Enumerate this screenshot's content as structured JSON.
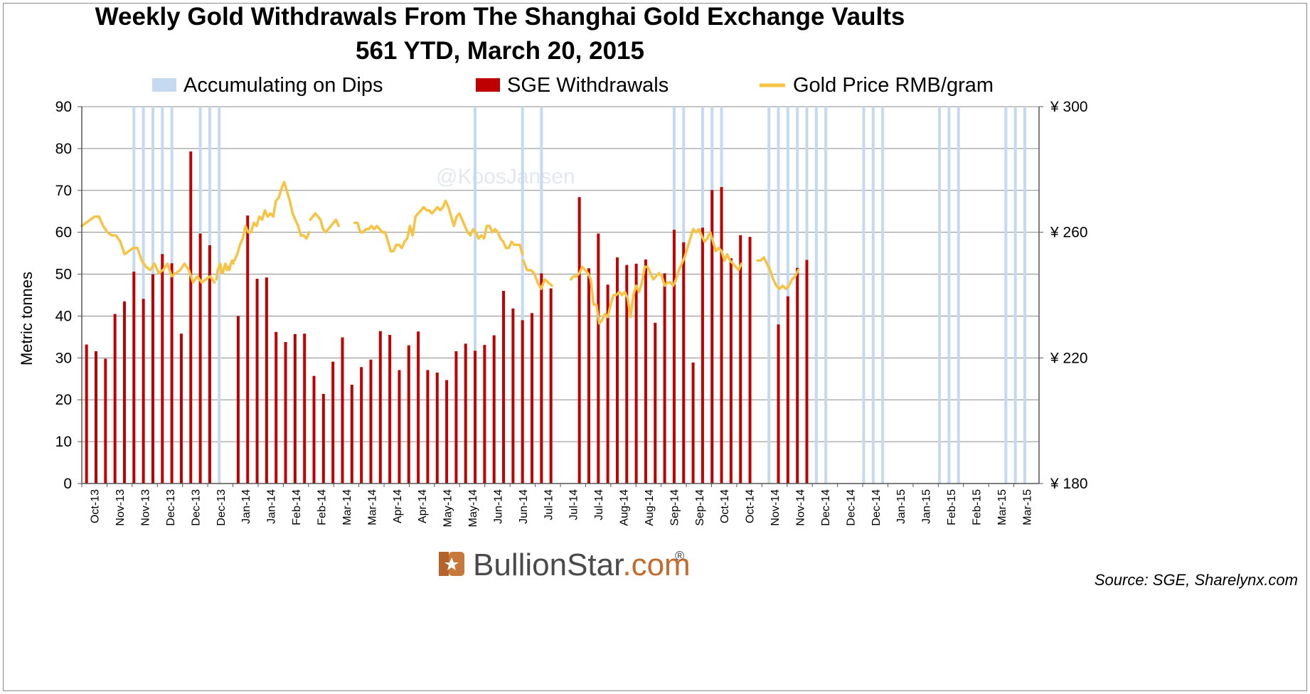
{
  "chart_data": {
    "type": "bar",
    "title": "Weekly Gold Withdrawals From The Shanghai Gold Exchange Vaults",
    "subtitle": "561 YTD, March 20, 2015",
    "ylabel": "Metric tonnes",
    "ylim": [
      0,
      90
    ],
    "yticks": [
      0,
      10,
      20,
      30,
      40,
      50,
      60,
      70,
      80,
      90
    ],
    "y2lim": [
      180,
      300
    ],
    "y2ticks": [
      "¥ 180",
      "¥ 220",
      "¥ 260",
      "¥ 300"
    ],
    "y2tick_values": [
      180,
      220,
      260,
      300
    ],
    "grid": true,
    "legend_position": "top",
    "x_ticks": [
      "Oct-13",
      "Nov-13",
      "Nov-13",
      "Dec-13",
      "Dec-13",
      "Dec-13",
      "Jan-14",
      "Jan-14",
      "Feb-14",
      "Feb-14",
      "Mar-14",
      "Mar-14",
      "Apr-14",
      "Apr-14",
      "May-14",
      "May-14",
      "Jun-14",
      "Jun-14",
      "Jul-14",
      "Jul-14",
      "Jul-14",
      "Aug-14",
      "Aug-14",
      "Sep-14",
      "Sep-14",
      "Oct-14",
      "Oct-14",
      "Nov-14",
      "Nov-14",
      "Dec-14",
      "Dec-14",
      "Dec-14",
      "Jan-15",
      "Jan-15",
      "Feb-15",
      "Feb-15",
      "Mar-15",
      "Mar-15"
    ],
    "series": [
      {
        "name": "Accumulating on Dips",
        "color": "#c5d9f1",
        "type": "bar",
        "values": [
          0,
          0,
          0,
          0,
          0,
          90,
          90,
          90,
          90,
          90,
          0,
          0,
          90,
          90,
          90,
          0,
          0,
          0,
          0,
          0,
          0,
          0,
          0,
          0,
          0,
          0,
          0,
          0,
          0,
          0,
          0,
          0,
          0,
          0,
          0,
          0,
          0,
          0,
          0,
          0,
          0,
          90,
          0,
          0,
          0,
          0,
          90,
          0,
          90,
          0,
          0,
          0,
          0,
          0,
          0,
          0,
          0,
          0,
          0,
          0,
          0,
          0,
          90,
          90,
          0,
          90,
          90,
          90,
          0,
          0,
          0,
          0,
          90,
          90,
          90,
          90,
          90,
          90,
          90,
          0,
          0,
          0,
          90,
          90,
          90,
          0,
          0,
          0,
          0,
          0,
          90,
          90,
          90,
          0,
          0,
          0,
          0,
          90,
          90,
          90,
          0
        ]
      },
      {
        "name": "SGE Withdrawals",
        "color": "#c00000",
        "type": "bar",
        "values": [
          33.2,
          31.6,
          29.8,
          40.5,
          43.5,
          50.6,
          44.1,
          50.0,
          54.8,
          52.6,
          35.8,
          79.3,
          59.7,
          56.9,
          0,
          0,
          40.0,
          64.0,
          48.9,
          49.2,
          36.2,
          33.8,
          35.7,
          35.8,
          25.7,
          21.4,
          29.1,
          34.9,
          23.6,
          27.8,
          29.6,
          36.4,
          35.5,
          27.1,
          33.0,
          36.3,
          27.1,
          26.5,
          24.7,
          31.6,
          33.4,
          31.7,
          33.1,
          35.4,
          46.0,
          41.8,
          39.0,
          40.7,
          50.2,
          46.6,
          0,
          0,
          68.4,
          51.4,
          59.7,
          47.5,
          54.0,
          52.2,
          52.5,
          53.5,
          38.4,
          50.2,
          60.6,
          57.6,
          28.9,
          61.1,
          70.1,
          70.8,
          53.8,
          59.3,
          58.9,
          0,
          0,
          38.0,
          44.7,
          51.5,
          53.4
        ]
      },
      {
        "name": "Gold Price RMB/gram",
        "color": "#f6c342",
        "type": "line",
        "axis": "secondary",
        "segments": [
          [
            262,
            263,
            264,
            265,
            265,
            262,
            260,
            259,
            259,
            257,
            253,
            254,
            255,
            255,
            251,
            249,
            248,
            250,
            247,
            248,
            250,
            246,
            247,
            248,
            250,
            248,
            244,
            246,
            244,
            245,
            246,
            244
          ],
          [
            245,
            248,
            249,
            250,
            247,
            247,
            249,
            250,
            248,
            249,
            248,
            250,
            251,
            250
          ],
          [
            251,
            253,
            256,
            258,
            262,
            260,
            260,
            263,
            262,
            265,
            264,
            267,
            265,
            266,
            265,
            270,
            271,
            274,
            276,
            273,
            270,
            266,
            264,
            262,
            259,
            259,
            258,
            260
          ],
          [
            264,
            265,
            266,
            265,
            264,
            261,
            260,
            261,
            262,
            263,
            264,
            262
          ],
          [
            263,
            263,
            260,
            260,
            261,
            261,
            262,
            261,
            262,
            261,
            260,
            260,
            257,
            254
          ],
          [
            254,
            254,
            256,
            256,
            255,
            257,
            258,
            262,
            259,
            265,
            266,
            267,
            268,
            267,
            267,
            266,
            267,
            268,
            267,
            268,
            270,
            268,
            265,
            262,
            265,
            266,
            264,
            262,
            260,
            259,
            261,
            260,
            258,
            259,
            258,
            262,
            262,
            260,
            261,
            260,
            258,
            257,
            255,
            255,
            257,
            256,
            256,
            256,
            253
          ],
          [
            251,
            248,
            248,
            247,
            244,
            242,
            245,
            244,
            243
          ],
          [
            245,
            246,
            246,
            247,
            249,
            248,
            247,
            245,
            237,
            237,
            231,
            232,
            234,
            233,
            237,
            240,
            240,
            241,
            240,
            241,
            239,
            233,
            240,
            243,
            241,
            244,
            249,
            249,
            247,
            245,
            246,
            247,
            246,
            243,
            244,
            244,
            243,
            245,
            248,
            250,
            252,
            255,
            258,
            261,
            260,
            261,
            259,
            257,
            258,
            260,
            257,
            254,
            255,
            254,
            251,
            253,
            251,
            250,
            249,
            248,
            250
          ]
        ]
      }
    ]
  },
  "watermark": "@KoosJansen",
  "brand": {
    "name_main": "BullionStar",
    "name_suffix": ".com",
    "mark": "®"
  },
  "source": "Source: SGE, Sharelynx.com"
}
